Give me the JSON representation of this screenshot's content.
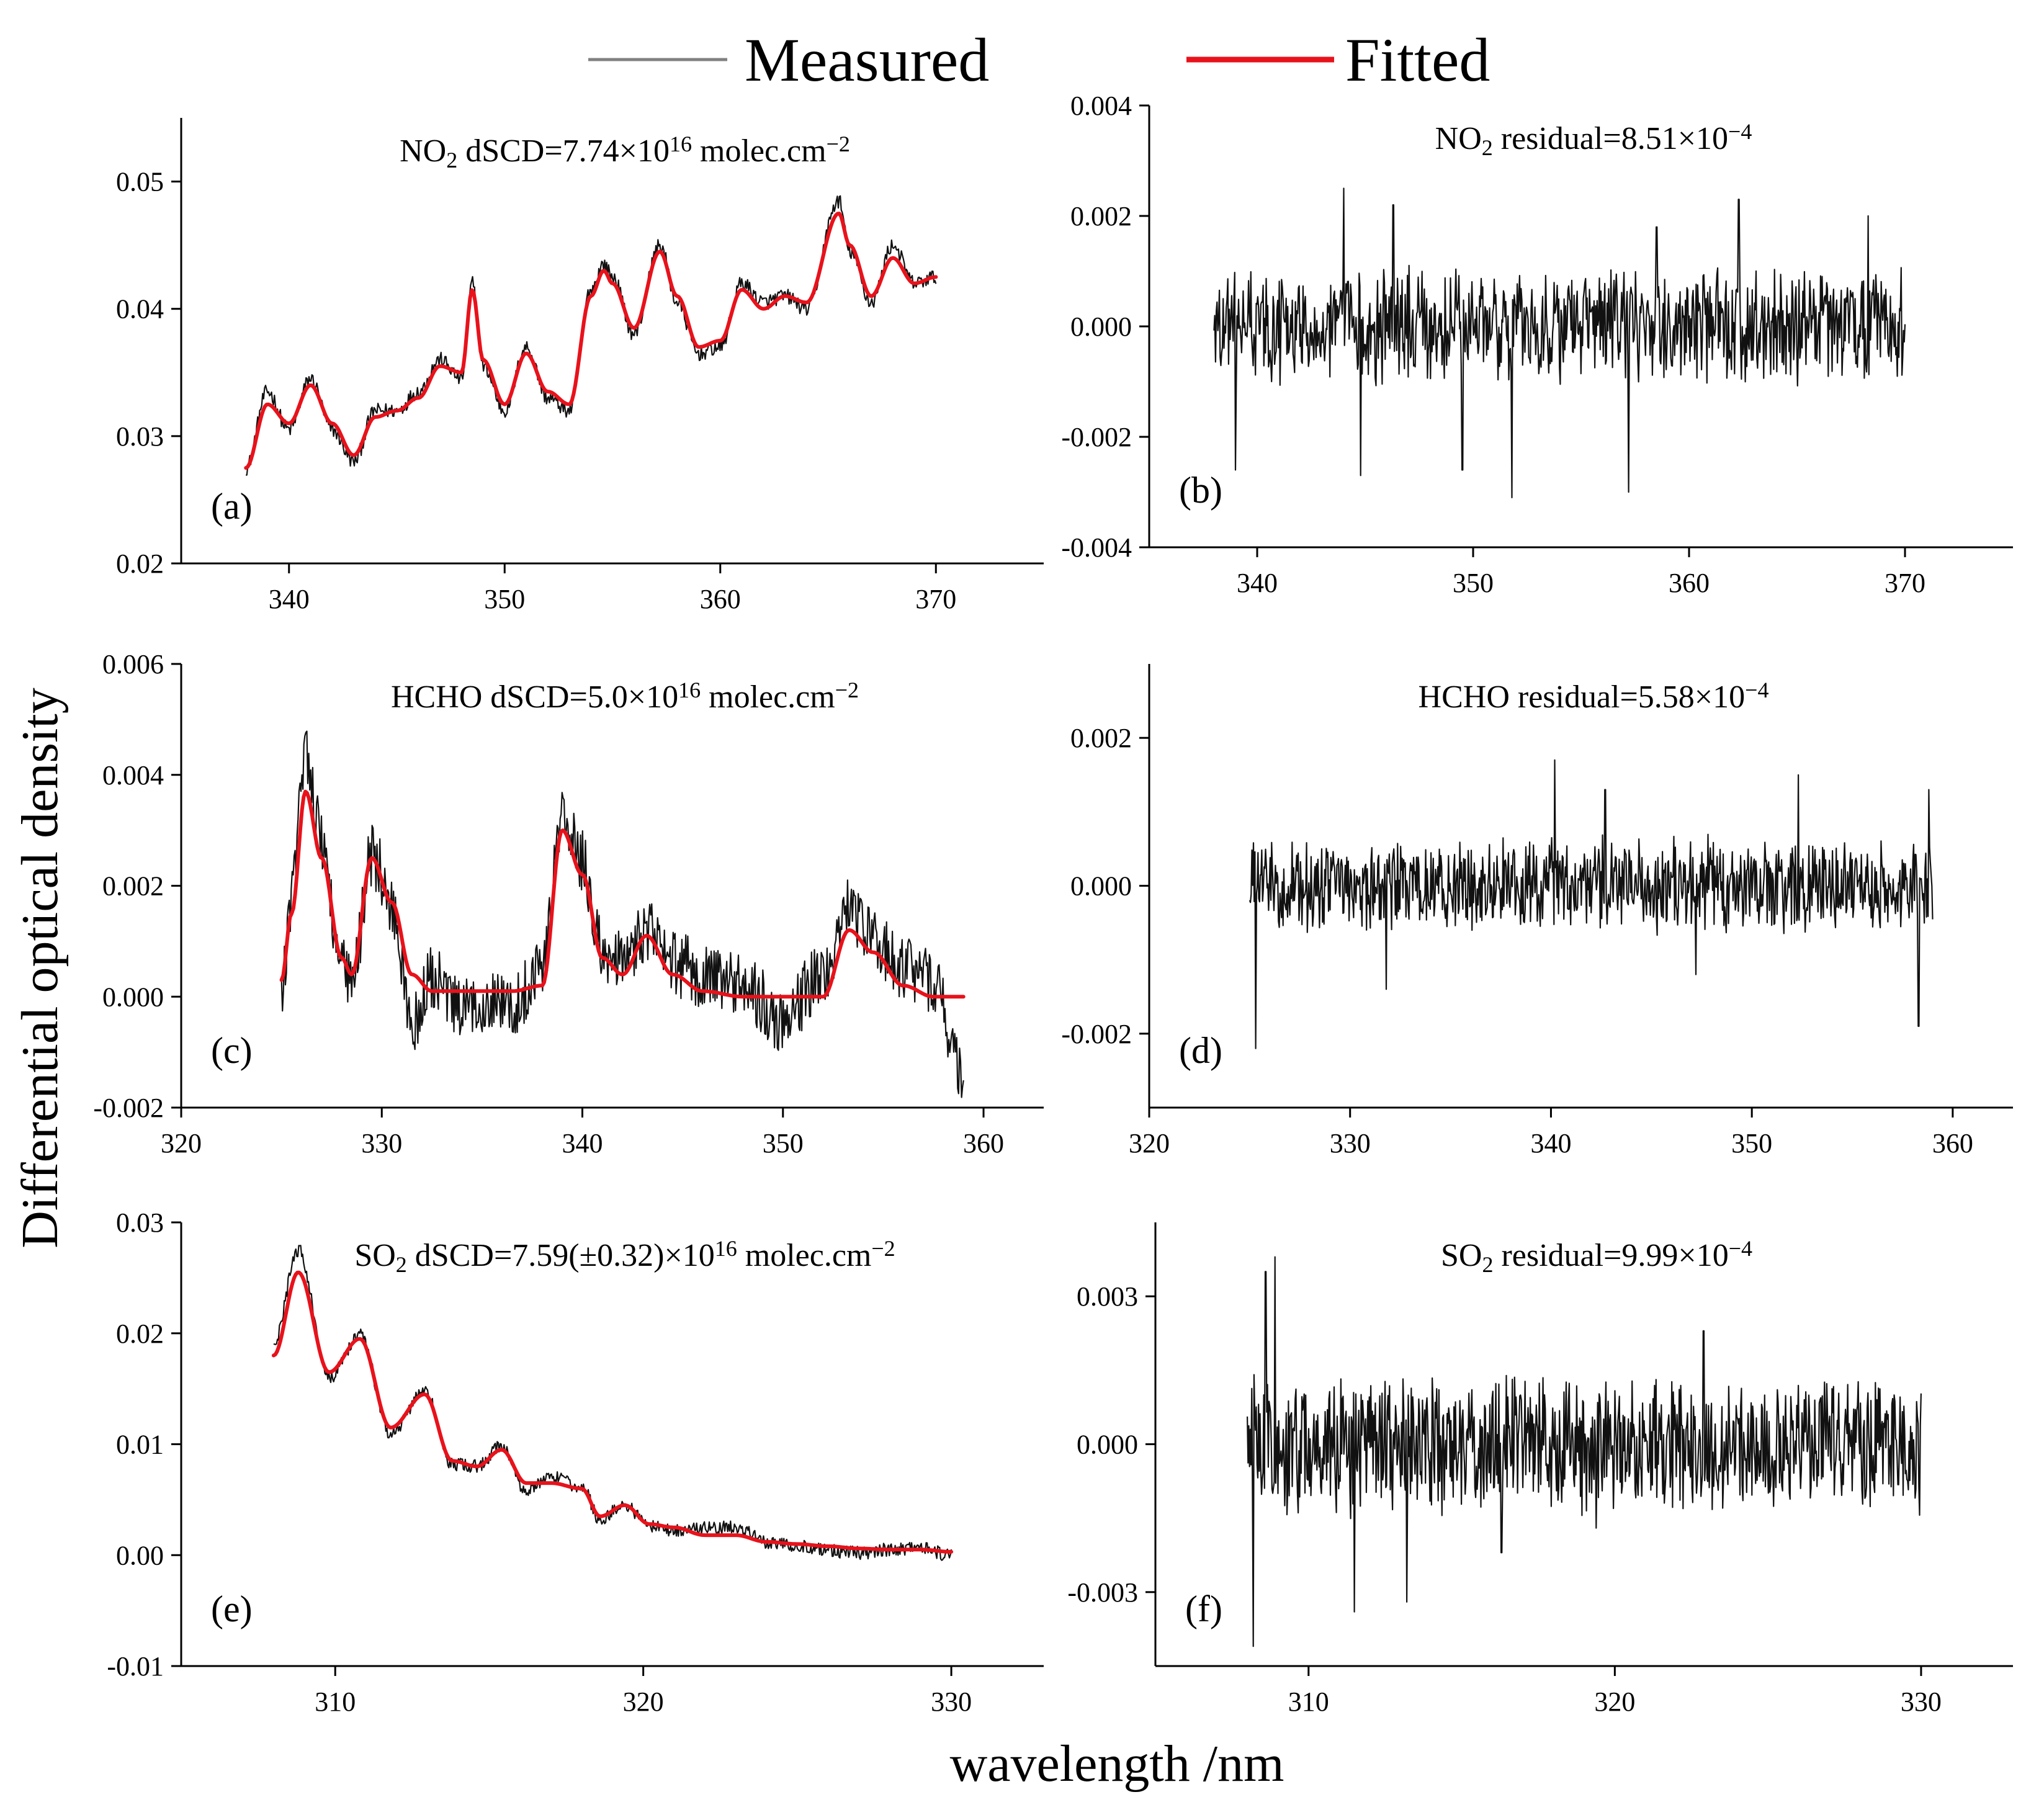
{
  "figure": {
    "legend": {
      "measured_label": "Measured",
      "fitted_label": "Fitted",
      "measured_color": "#808080",
      "fitted_color": "#e8121b"
    },
    "ylabel": "Differential optical density",
    "xlabel": "wavelength /nm"
  },
  "chart_data": [
    {
      "id": "a",
      "letter": "(a)",
      "type": "line",
      "title_parts": [
        "NO",
        "2",
        " dSCD=7.74×10",
        "16",
        " molec.cm",
        "−2"
      ],
      "xlim": [
        335,
        375
      ],
      "xticks": [
        340,
        350,
        360,
        370
      ],
      "ylim": [
        0.02,
        0.055
      ],
      "yticks": [
        "0.02",
        "0.03",
        "0.04",
        "0.05"
      ],
      "x_range": [
        338,
        370
      ],
      "noise": 0.0006,
      "fitted": {
        "x": [
          338,
          339,
          340,
          341,
          342,
          343,
          344,
          345,
          346,
          347,
          348,
          348.5,
          349,
          350,
          351,
          352,
          353,
          354,
          354.6,
          355,
          356,
          357.2,
          358,
          359,
          360,
          361,
          362,
          363,
          364,
          365.5,
          366,
          367,
          368,
          369,
          370
        ],
        "y": [
          0.0275,
          0.0325,
          0.031,
          0.034,
          0.031,
          0.0285,
          0.0315,
          0.032,
          0.033,
          0.0355,
          0.035,
          0.0415,
          0.036,
          0.0325,
          0.0365,
          0.0335,
          0.0325,
          0.041,
          0.043,
          0.042,
          0.0385,
          0.0445,
          0.041,
          0.037,
          0.0375,
          0.0415,
          0.04,
          0.041,
          0.0405,
          0.0475,
          0.045,
          0.041,
          0.044,
          0.042,
          0.0425
        ]
      },
      "measured": {
        "x": [
          338,
          339,
          340,
          341,
          342,
          343,
          344,
          345,
          346,
          347,
          348,
          348.5,
          349,
          350,
          351,
          352,
          353,
          354,
          354.6,
          355,
          356,
          357.2,
          358,
          359,
          360,
          361,
          362,
          363,
          364,
          365.5,
          366,
          367,
          368,
          369,
          370
        ],
        "y": [
          0.0275,
          0.0335,
          0.0305,
          0.0345,
          0.0305,
          0.028,
          0.032,
          0.032,
          0.0335,
          0.036,
          0.0345,
          0.042,
          0.0355,
          0.032,
          0.037,
          0.033,
          0.032,
          0.0415,
          0.0435,
          0.0425,
          0.038,
          0.045,
          0.0405,
          0.0365,
          0.037,
          0.042,
          0.0405,
          0.041,
          0.04,
          0.0485,
          0.0445,
          0.0405,
          0.045,
          0.042,
          0.0425
        ]
      }
    },
    {
      "id": "b",
      "letter": "(b)",
      "type": "line",
      "title_parts": [
        "NO",
        "2",
        " residual=8.51×10",
        "−4",
        "",
        ""
      ],
      "xlim": [
        335,
        375
      ],
      "xticks": [
        340,
        350,
        360,
        370
      ],
      "ylim": [
        -0.004,
        0.004
      ],
      "yticks": [
        "-0.004",
        "-0.002",
        "0.000",
        "0.002",
        "0.004"
      ],
      "x_range": [
        338,
        370
      ],
      "amplitude": 0.0008,
      "spikes": [
        [
          344,
          0.0025
        ],
        [
          344.8,
          -0.0027
        ],
        [
          349.5,
          -0.0026
        ],
        [
          351.8,
          -0.0031
        ],
        [
          357.2,
          -0.003
        ],
        [
          358.5,
          0.0018
        ],
        [
          362.3,
          0.0023
        ],
        [
          368.3,
          0.002
        ],
        [
          339,
          -0.0026
        ],
        [
          346.3,
          0.0022
        ]
      ]
    },
    {
      "id": "c",
      "letter": "(c)",
      "type": "line",
      "title_parts": [
        "HCHO dSCD=5.0×10",
        "16",
        " molec.cm",
        "−2",
        "",
        ""
      ],
      "xlim": [
        320,
        363
      ],
      "xticks": [
        320,
        330,
        340,
        350,
        360
      ],
      "ylim": [
        -0.002,
        0.006
      ],
      "yticks": [
        "-0.002",
        "0.000",
        "0.002",
        "0.004",
        "0.006"
      ],
      "x_range": [
        325,
        359
      ],
      "noise": 0.0006,
      "fitted": {
        "x": [
          325,
          325.5,
          326.2,
          327,
          328,
          328.5,
          329.5,
          330.5,
          331.5,
          332.5,
          334,
          335.5,
          336.5,
          338,
          339,
          340,
          341,
          342,
          343.2,
          344.5,
          346,
          348,
          350,
          352,
          353.3,
          354.5,
          356,
          357.5,
          359
        ],
        "y": [
          0.0003,
          0.0015,
          0.0037,
          0.0025,
          0.0007,
          0.0004,
          0.0025,
          0.0017,
          0.0004,
          0.0001,
          0.0001,
          0.0001,
          0.0001,
          0.0002,
          0.003,
          0.0022,
          0.0007,
          0.0004,
          0.0011,
          0.0004,
          0.0001,
          0.0,
          0.0,
          0.0,
          0.0012,
          0.0008,
          0.0002,
          0.0,
          0.0
        ]
      },
      "measured": {
        "x": [
          325,
          325.5,
          326.2,
          327,
          328,
          328.5,
          329.5,
          330.5,
          331.5,
          332.5,
          334,
          335.5,
          336.5,
          338,
          339,
          340,
          341,
          342,
          343.2,
          344.5,
          346,
          348,
          350,
          352,
          353.3,
          354.5,
          356,
          357.5,
          359
        ],
        "y": [
          0.0,
          0.0018,
          0.0045,
          0.0028,
          0.0005,
          0.0002,
          0.0026,
          0.0016,
          -0.0005,
          0.0003,
          -0.0003,
          0.0,
          -0.0002,
          0.0006,
          0.0032,
          0.0024,
          0.0008,
          0.0006,
          0.0012,
          0.0006,
          0.0004,
          0.0002,
          -0.0004,
          0.0004,
          0.0016,
          0.001,
          0.0005,
          0.0003,
          -0.0015
        ]
      }
    },
    {
      "id": "d",
      "letter": "(d)",
      "type": "line",
      "title_parts": [
        "HCHO residual=5.58×10",
        "−4",
        "",
        "",
        "",
        ""
      ],
      "xlim": [
        320,
        363
      ],
      "xticks": [
        320,
        330,
        340,
        350,
        360
      ],
      "ylim": [
        -0.003,
        0.003
      ],
      "yticks": [
        "-0.002",
        "0.000",
        "0.002"
      ],
      "x_range": [
        325,
        359
      ],
      "amplitude": 0.0005,
      "spikes": [
        [
          325.3,
          -0.0022
        ],
        [
          340.2,
          0.0017
        ],
        [
          342.7,
          0.0013
        ],
        [
          352.3,
          0.0015
        ],
        [
          358.3,
          -0.0019
        ],
        [
          358.8,
          0.0013
        ],
        [
          331.8,
          -0.0014
        ],
        [
          347.2,
          -0.0012
        ]
      ]
    },
    {
      "id": "e",
      "letter": "(e)",
      "type": "line",
      "title_parts": [
        "SO",
        "2",
        " dSCD=7.59(±0.32)×10",
        "16",
        "  molec.cm",
        "−2"
      ],
      "xlim": [
        305,
        333
      ],
      "xticks": [
        310,
        320,
        330
      ],
      "ylim": [
        -0.01,
        0.03
      ],
      "yticks": [
        "-0.01",
        "0.00",
        "0.01",
        "0.02",
        "0.03"
      ],
      "x_range": [
        308,
        330
      ],
      "noise": 0.0006,
      "fitted": {
        "x": [
          308,
          308.8,
          309.8,
          310.8,
          311.8,
          312.9,
          313.8,
          314.6,
          315.4,
          316.2,
          317,
          318,
          318.6,
          319.4,
          320.2,
          321,
          322,
          323,
          324,
          325,
          326,
          327,
          328,
          329,
          330
        ],
        "y": [
          0.018,
          0.0255,
          0.0165,
          0.0195,
          0.0115,
          0.0145,
          0.0085,
          0.008,
          0.0095,
          0.0065,
          0.0065,
          0.006,
          0.0035,
          0.0045,
          0.0028,
          0.0025,
          0.0018,
          0.0018,
          0.0012,
          0.001,
          0.0008,
          0.0006,
          0.0005,
          0.0005,
          0.0003
        ]
      },
      "measured": {
        "x": [
          308,
          308.8,
          309.8,
          310.8,
          311.8,
          312.9,
          313.8,
          314.6,
          315.4,
          316.2,
          317,
          318,
          318.6,
          319.4,
          320.2,
          321,
          322,
          323,
          324,
          325,
          326,
          327,
          328,
          329,
          330
        ],
        "y": [
          0.019,
          0.0275,
          0.016,
          0.0198,
          0.011,
          0.0148,
          0.0082,
          0.008,
          0.0098,
          0.0058,
          0.007,
          0.0062,
          0.0032,
          0.0046,
          0.0026,
          0.0022,
          0.0024,
          0.0026,
          0.0012,
          0.0008,
          0.0004,
          0.0002,
          0.0005,
          0.0006,
          0.0
        ]
      }
    },
    {
      "id": "f",
      "letter": "(f)",
      "type": "line",
      "title_parts": [
        "SO",
        "2",
        " residual=9.99×10",
        "−4",
        "",
        ""
      ],
      "xlim": [
        305,
        333
      ],
      "xticks": [
        310,
        320,
        330
      ],
      "ylim": [
        -0.0045,
        0.0045
      ],
      "yticks": [
        "-0.003",
        "0.000",
        "0.003"
      ],
      "x_range": [
        308,
        330
      ],
      "amplitude": 0.0011,
      "spikes": [
        [
          308.2,
          -0.0041
        ],
        [
          308.6,
          0.0035
        ],
        [
          308.9,
          0.0038
        ],
        [
          311.5,
          -0.0034
        ],
        [
          313.2,
          -0.0032
        ],
        [
          316.3,
          -0.0022
        ],
        [
          322.9,
          0.0023
        ],
        [
          319.4,
          -0.0017
        ]
      ]
    }
  ]
}
